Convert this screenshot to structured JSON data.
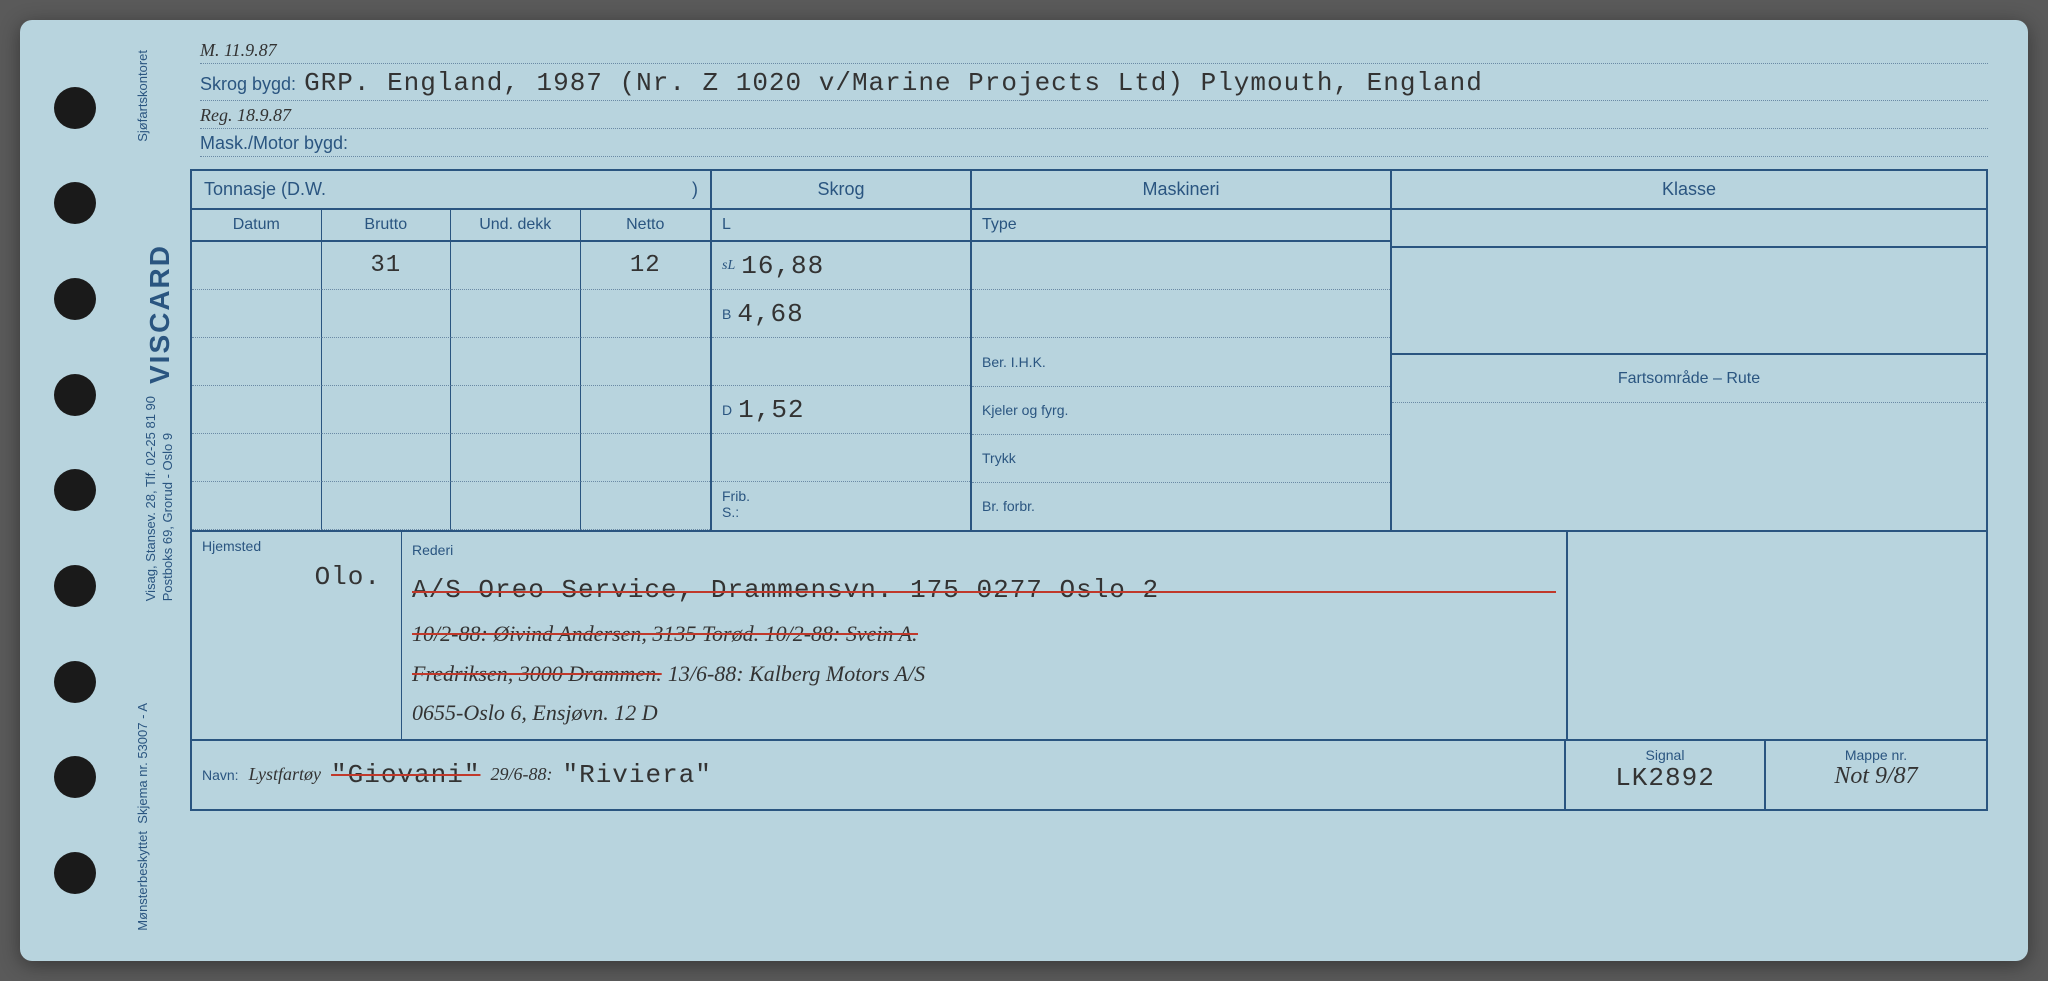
{
  "header": {
    "ml_note": "M. 11.9.87",
    "skrog_bygd_label": "Skrog bygd:",
    "skrog_bygd_value": "GRP. England, 1987 (Nr. Z 1020 v/Marine Projects Ltd) Plymouth, England",
    "reg_note": "Reg. 18.9.87",
    "mask_bygd_label": "Mask./Motor bygd:",
    "mask_bygd_value": ""
  },
  "columns": {
    "tonnasje": "Tonnasje (D.W.",
    "tonnasje_close": ")",
    "skrog": "Skrog",
    "maskineri": "Maskineri",
    "klasse": "Klasse",
    "datum": "Datum",
    "brutto": "Brutto",
    "und_dekk": "Und. dekk",
    "netto": "Netto",
    "L": "L",
    "type": "Type",
    "fartsomrade": "Fartsområde – Rute"
  },
  "tonnasje_values": {
    "brutto": "31",
    "netto": "12"
  },
  "skrog_values": {
    "L_prefix": "sL",
    "L": "16,88",
    "B_prefix": "B",
    "B": "4,68",
    "D_prefix": "D",
    "D": "1,52",
    "frib": "Frib.",
    "S": "S.:"
  },
  "mask_labels": {
    "ber": "Ber. I.H.K.",
    "kjeler": "Kjeler og fyrg.",
    "trykk": "Trykk",
    "br": "Br. forbr."
  },
  "hjemsted": {
    "label": "Hjemsted",
    "value": "Olo."
  },
  "rederi": {
    "label": "Rederi",
    "line1": "A/S Oreo Service, Drammensvn. 175 0277 Oslo 2",
    "line2a": "10/2-88: Øivind Andersen, 3135 Torød. 10/2-88: Svein A.",
    "line2b": "Fredriksen, 3000 Drammen.",
    "line2c": "13/6-88: Kalberg Motors A/S",
    "line3": "0655-Oslo 6, Ensjøvn. 12 D"
  },
  "navn": {
    "label": "Navn:",
    "type_note": "Lystfartøy",
    "old_name": "\"Giovani\"",
    "date": "29/6-88:",
    "new_name": "\"Riviera\""
  },
  "signal": {
    "label": "Signal",
    "value": "LK2892"
  },
  "mappe": {
    "label": "Mappe nr.",
    "value": "Not 9/87"
  },
  "side": {
    "brand": "VISCARD",
    "addr": "Visag, Stansev. 28, Tlf. 02-25 81 90\nPostboks 69, Grorud - Oslo 9",
    "skjema": "Skjema nr. 53007 - A",
    "monster": "Mønsterbeskyttet",
    "sjofart": "Sjøfartskontoret"
  }
}
